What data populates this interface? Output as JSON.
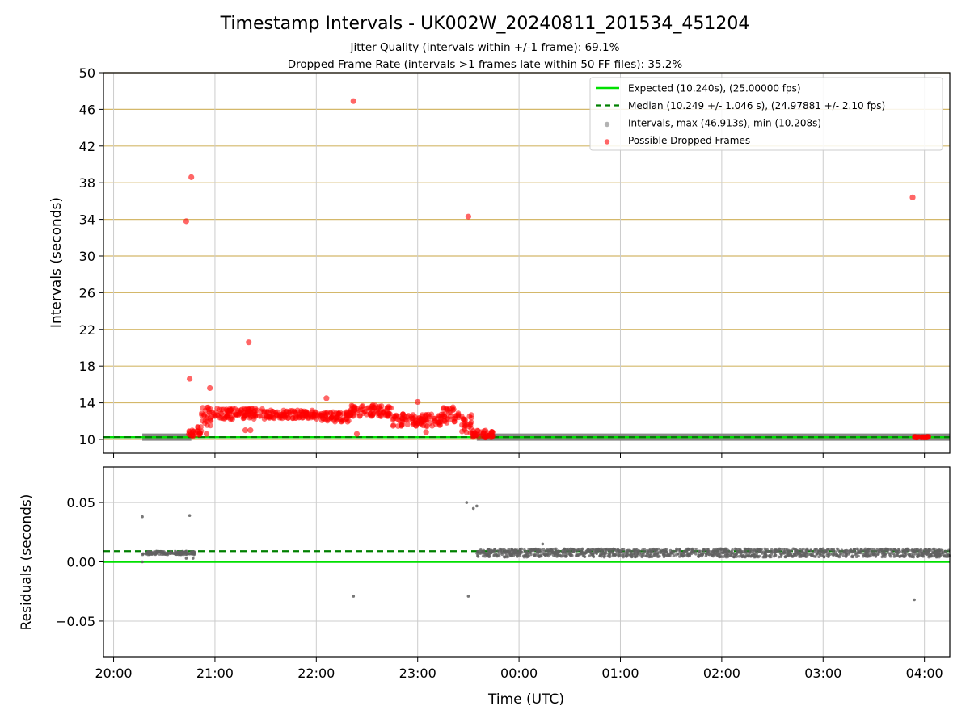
{
  "chart_data": [
    {
      "type": "scatter",
      "panel": "intervals",
      "title": "Timestamp Intervals - UK002W_20240811_201534_451204",
      "subtitle_lines": [
        "Jitter Quality (intervals within +/-1 frame): 69.1%",
        "Dropped Frame Rate (intervals >1 frames late within 50 FF files): 35.2%"
      ],
      "ylabel": "Intervals (seconds)",
      "ylim": [
        8.5,
        50
      ],
      "y_ticks": [
        "10",
        "14",
        "18",
        "22",
        "26",
        "30",
        "34",
        "38",
        "42",
        "46",
        "50"
      ],
      "grid": "horizontal-goldenrod",
      "legend_placement": "upper-right",
      "legend": [
        {
          "label": "Expected (10.240s), (25.00000 fps)",
          "style": "solid-line",
          "color": "#00e000"
        },
        {
          "label": "Median (10.249 +/- 1.046 s), (24.97881 +/- 2.10 fps)",
          "style": "dashed-line",
          "color": "#008000"
        },
        {
          "label": "Intervals, max (46.913s), min (10.208s)",
          "style": "marker",
          "color": "#808080"
        },
        {
          "label": "Possible Dropped Frames",
          "style": "marker",
          "color": "#ff0000"
        }
      ],
      "reference_lines": {
        "expected": 10.24,
        "median": 10.249
      },
      "series": [
        {
          "role": "intervals",
          "color": "#808080",
          "segments": [
            {
              "x_start": "20:17",
              "x_end": "20:46",
              "y": 10.25
            },
            {
              "x_start": "23:35",
              "x_end": "04:15",
              "y": 10.25
            }
          ]
        },
        {
          "role": "dropped",
          "color": "#ff0000",
          "bands": [
            {
              "x_start": "20:44",
              "x_end": "20:48",
              "y_min": 10.2,
              "y_max": 11.0
            },
            {
              "x_start": "20:48",
              "x_end": "20:52",
              "y_min": 10.4,
              "y_max": 11.5
            },
            {
              "x_start": "20:52",
              "x_end": "21:00",
              "y_min": 11.5,
              "y_max": 13.6
            },
            {
              "x_start": "21:00",
              "x_end": "21:30",
              "y_min": 12.2,
              "y_max": 13.4
            },
            {
              "x_start": "21:30",
              "x_end": "22:00",
              "y_min": 12.3,
              "y_max": 13.2
            },
            {
              "x_start": "22:00",
              "x_end": "22:20",
              "y_min": 11.9,
              "y_max": 13.0
            },
            {
              "x_start": "22:20",
              "x_end": "22:45",
              "y_min": 12.5,
              "y_max": 13.8
            },
            {
              "x_start": "22:45",
              "x_end": "23:15",
              "y_min": 11.4,
              "y_max": 12.8
            },
            {
              "x_start": "23:15",
              "x_end": "23:25",
              "y_min": 11.8,
              "y_max": 13.6
            },
            {
              "x_start": "23:25",
              "x_end": "23:32",
              "y_min": 10.6,
              "y_max": 12.8
            },
            {
              "x_start": "23:32",
              "x_end": "23:45",
              "y_min": 10.2,
              "y_max": 11.0
            },
            {
              "x_start": "03:54",
              "x_end": "04:03",
              "y_min": 10.2,
              "y_max": 10.3
            }
          ],
          "points": [
            {
              "x": "20:43",
              "y": 33.8
            },
            {
              "x": "20:46",
              "y": 38.6
            },
            {
              "x": "20:45",
              "y": 16.6
            },
            {
              "x": "20:57",
              "y": 15.6
            },
            {
              "x": "20:55",
              "y": 10.6
            },
            {
              "x": "21:20",
              "y": 20.6
            },
            {
              "x": "21:18",
              "y": 11.0
            },
            {
              "x": "21:21",
              "y": 11.0
            },
            {
              "x": "22:06",
              "y": 14.5
            },
            {
              "x": "22:22",
              "y": 46.9
            },
            {
              "x": "22:24",
              "y": 10.6
            },
            {
              "x": "23:05",
              "y": 10.8
            },
            {
              "x": "23:00",
              "y": 14.1
            },
            {
              "x": "23:30",
              "y": 34.3
            },
            {
              "x": "03:53",
              "y": 36.4
            }
          ]
        }
      ]
    },
    {
      "type": "scatter",
      "panel": "residuals",
      "xlabel": "Time (UTC)",
      "ylabel": "Residuals (seconds)",
      "ylim": [
        -0.08,
        0.08
      ],
      "y_ticks": [
        "0.05",
        "0.00",
        "−0.05"
      ],
      "y_tick_values": [
        0.05,
        0.0,
        -0.05
      ],
      "x_ticks": [
        "20:00",
        "21:00",
        "22:00",
        "23:00",
        "00:00",
        "01:00",
        "02:00",
        "03:00",
        "04:00"
      ],
      "x_range": [
        "19:54",
        "04:15"
      ],
      "grid": "both",
      "reference_lines": {
        "expected": 0.0,
        "median": 0.009
      },
      "series": [
        {
          "role": "residuals",
          "color": "#606060",
          "bands": [
            {
              "x_start": "20:17",
              "x_end": "20:48",
              "y_min": 0.006,
              "y_max": 0.009
            },
            {
              "x_start": "23:35",
              "x_end": "04:15",
              "y_min": 0.004,
              "y_max": 0.011
            }
          ],
          "points": [
            {
              "x": "20:17",
              "y": 0.038
            },
            {
              "x": "20:45",
              "y": 0.039
            },
            {
              "x": "20:43",
              "y": 0.003
            },
            {
              "x": "20:47",
              "y": 0.003
            },
            {
              "x": "23:29",
              "y": 0.05
            },
            {
              "x": "23:33",
              "y": 0.045
            },
            {
              "x": "23:35",
              "y": 0.047
            },
            {
              "x": "22:22",
              "y": -0.029
            },
            {
              "x": "23:30",
              "y": -0.029
            },
            {
              "x": "03:54",
              "y": -0.032
            },
            {
              "x": "00:14",
              "y": 0.015
            },
            {
              "x": "20:17",
              "y": 0.0
            }
          ]
        }
      ]
    }
  ]
}
